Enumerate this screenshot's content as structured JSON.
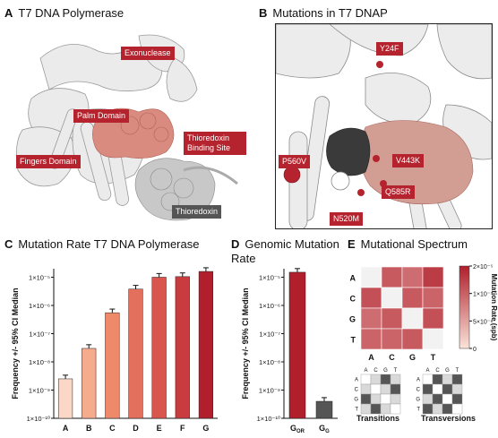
{
  "panels": {
    "a": {
      "letter": "A",
      "title": "T7 DNA Polymerase",
      "labels": {
        "exonuclease": "Exonuclease",
        "palm": "Palm Domain",
        "fingers": "Fingers Domain",
        "thioredoxin_binding": "Thioredoxin Binding Site",
        "thioredoxin": "Thioredoxin"
      }
    },
    "b": {
      "letter": "B",
      "title": "Mutations in T7 DNAP",
      "labels": {
        "y24f": "Y24F",
        "p560v": "P560V",
        "v443k": "V443K",
        "q585r": "Q585R",
        "n520m": "N520M"
      }
    },
    "c": {
      "letter": "C",
      "title": "Mutation Rate T7 DNA Polymerase"
    },
    "d": {
      "letter": "D",
      "title_line1": "Genomic Mutation",
      "title_line2": "Rate"
    },
    "e": {
      "letter": "E",
      "title": "Mutational Spectrum",
      "colorbar_label": "Mutation Rate (spb)",
      "colorbar_ticks": [
        "2×10⁻⁵",
        "1×10⁻⁵",
        "5×10⁻⁶",
        "0"
      ],
      "transitions_label": "Transitions",
      "transversions_label": "Transversions"
    }
  },
  "colors": {
    "tag_red": "#b5242e",
    "tag_gray": "#555555",
    "bar_light": "#f6c2ae",
    "bar_dark": "#b01f2b",
    "protein_white": "#e9e9e9",
    "protein_salmon": "#d98b80"
  },
  "chart_data": [
    {
      "type": "bar",
      "title": "Mutation Rate T7 DNA Polymerase",
      "xlabel": "",
      "ylabel": "Frequency +/- 95% CI Median",
      "yscale": "log",
      "ylim": [
        1e-10,
        2e-05
      ],
      "yticks": [
        "1×10⁻¹⁰",
        "1×10⁻⁹",
        "1×10⁻⁸",
        "1×10⁻⁷",
        "1×10⁻⁶",
        "1×10⁻⁵"
      ],
      "categories": [
        "A",
        "B",
        "C",
        "D",
        "E",
        "F",
        "G"
      ],
      "values": [
        2.5e-09,
        3e-08,
        5.5e-07,
        3.8e-06,
        1e-05,
        1.05e-05,
        1.6e-05
      ],
      "colors": [
        "#fbd7c8",
        "#f6ab8d",
        "#ee8a6a",
        "#e3705c",
        "#d9564f",
        "#c83c3f",
        "#b01f2b"
      ]
    },
    {
      "type": "bar",
      "title": "Genomic Mutation Rate",
      "xlabel": "",
      "ylabel": "Frequency +/- 95% CI Median",
      "yscale": "log",
      "ylim": [
        1e-10,
        2e-05
      ],
      "yticks": [
        "1×10⁻¹⁰",
        "1×10⁻⁹",
        "1×10⁻⁸",
        "1×10⁻⁷",
        "1×10⁻⁶",
        "1×10⁻⁵"
      ],
      "categories": [
        "G",
        "G"
      ],
      "category_subscripts": [
        "OR",
        "G"
      ],
      "values": [
        1.5e-05,
        4e-10
      ],
      "colors": [
        "#b01f2b",
        "#555555"
      ]
    },
    {
      "type": "heatmap",
      "title": "Mutational Spectrum",
      "rows": [
        "A",
        "C",
        "G",
        "T"
      ],
      "columns": [
        "A",
        "C",
        "G",
        "T"
      ],
      "values": [
        [
          0,
          1.4e-05,
          1.2e-05,
          1.7e-05
        ],
        [
          1.5e-05,
          0,
          1.4e-05,
          1.3e-05
        ],
        [
          1.2e-05,
          1.4e-05,
          0,
          1.5e-05
        ],
        [
          1.3e-05,
          1.3e-05,
          1.4e-05,
          0
        ]
      ],
      "colorbar_range": [
        0,
        2e-05
      ],
      "transitions_mask": [
        [
          0,
          0,
          1,
          0
        ],
        [
          0,
          0,
          0,
          1
        ],
        [
          1,
          0,
          0,
          0
        ],
        [
          0,
          1,
          0,
          0
        ]
      ],
      "transversions_mask": [
        [
          0,
          1,
          0,
          1
        ],
        [
          1,
          0,
          1,
          0
        ],
        [
          0,
          1,
          0,
          1
        ],
        [
          1,
          0,
          1,
          0
        ]
      ]
    }
  ]
}
